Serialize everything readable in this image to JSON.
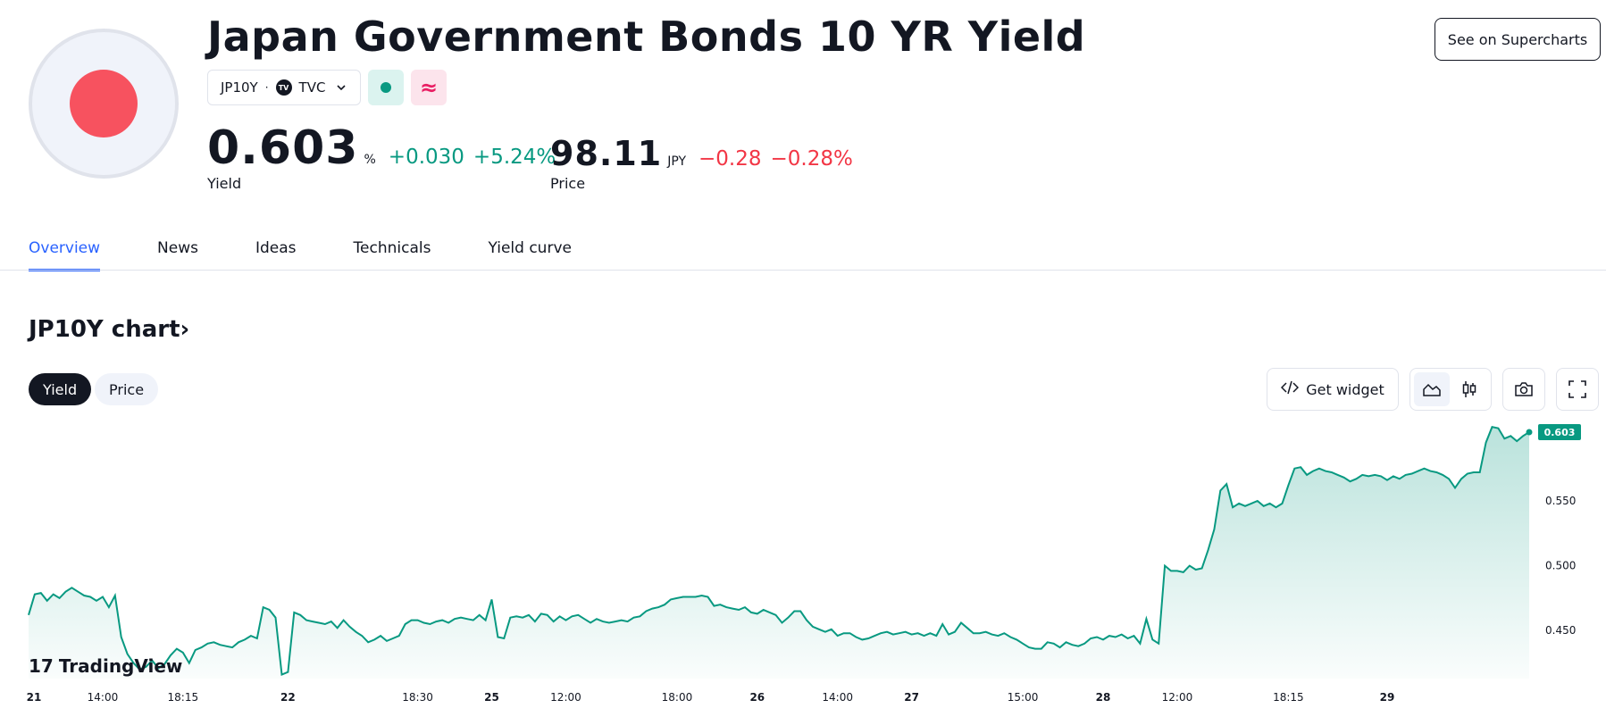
{
  "header": {
    "title": "Japan Government Bonds 10 YR Yield",
    "symbol": "JP10Y",
    "separator": "·",
    "exchange": "TVC",
    "logo_mark": "TV",
    "market_status_icon": "market-open-dot",
    "delayed_icon": "≈",
    "supercharts_label": "See on Supercharts"
  },
  "quote": {
    "yield_value": "0.603",
    "yield_unit": "%",
    "yield_change": "+0.030",
    "yield_change_pct": "+5.24%",
    "yield_label": "Yield",
    "price_value": "98.11",
    "price_unit": "JPY",
    "price_change": "−0.28",
    "price_change_pct": "−0.28%",
    "price_label": "Price"
  },
  "tabs": [
    {
      "label": "Overview",
      "active": true
    },
    {
      "label": "News"
    },
    {
      "label": "Ideas"
    },
    {
      "label": "Technicals"
    },
    {
      "label": "Yield curve"
    }
  ],
  "chart_section": {
    "title": "JP10Y chart",
    "title_chevron": "›",
    "toggle_yield": "Yield",
    "toggle_price": "Price",
    "widget_label": "Get widget",
    "watermark": "TradingView",
    "watermark_mark": "17"
  },
  "colors": {
    "accent": "#2962ff",
    "up": "#089981",
    "down": "#f23645",
    "flag_red": "#f7525f"
  },
  "chart_data": {
    "type": "area",
    "series": [
      {
        "values": [
          0.462,
          0.478,
          0.479,
          0.473,
          0.478,
          0.475,
          0.48,
          0.483,
          0.48,
          0.477,
          0.476,
          0.473,
          0.476,
          0.468,
          0.477,
          0.445,
          0.432,
          0.425,
          0.42,
          0.422,
          0.427,
          0.421,
          0.424,
          0.431,
          0.436,
          0.433,
          0.425,
          0.435,
          0.437,
          0.44,
          0.441,
          0.439,
          0.438,
          0.437,
          0.441,
          0.443,
          0.446,
          0.444,
          0.468,
          0.466,
          0.46,
          0.416,
          0.418,
          0.464,
          0.462,
          0.458,
          0.457,
          0.456,
          0.455,
          0.457,
          0.452,
          0.458,
          0.453,
          0.449,
          0.446,
          0.441,
          0.443,
          0.446,
          0.442,
          0.444,
          0.446,
          0.455,
          0.458,
          0.458,
          0.456,
          0.455,
          0.457,
          0.458,
          0.456,
          0.459,
          0.46,
          0.459,
          0.458,
          0.462,
          0.458,
          0.474,
          0.445,
          0.444,
          0.46,
          0.461,
          0.46,
          0.462,
          0.457,
          0.463,
          0.462,
          0.457,
          0.461,
          0.458,
          0.461,
          0.462,
          0.459,
          0.456,
          0.459,
          0.457,
          0.456,
          0.457,
          0.458,
          0.457,
          0.46,
          0.461,
          0.465,
          0.467,
          0.468,
          0.47,
          0.474,
          0.475,
          0.476,
          0.476,
          0.476,
          0.477,
          0.476,
          0.469,
          0.47,
          0.468,
          0.467,
          0.466,
          0.468,
          0.464,
          0.463,
          0.466,
          0.464,
          0.462,
          0.456,
          0.46,
          0.465,
          0.465,
          0.458,
          0.453,
          0.451,
          0.449,
          0.451,
          0.446,
          0.448,
          0.448,
          0.445,
          0.443,
          0.444,
          0.446,
          0.448,
          0.449,
          0.447,
          0.448,
          0.449,
          0.447,
          0.448,
          0.446,
          0.448,
          0.446,
          0.455,
          0.447,
          0.449,
          0.456,
          0.452,
          0.448,
          0.448,
          0.449,
          0.447,
          0.446,
          0.448,
          0.445,
          0.443,
          0.44,
          0.437,
          0.436,
          0.436,
          0.441,
          0.44,
          0.437,
          0.441,
          0.439,
          0.438,
          0.44,
          0.444,
          0.445,
          0.443,
          0.446,
          0.445,
          0.447,
          0.444,
          0.446,
          0.44,
          0.459,
          0.443,
          0.44,
          0.5,
          0.496,
          0.496,
          0.495,
          0.5,
          0.497,
          0.498,
          0.512,
          0.528,
          0.558,
          0.563,
          0.545,
          0.548,
          0.546,
          0.548,
          0.55,
          0.546,
          0.548,
          0.545,
          0.548,
          0.562,
          0.575,
          0.576,
          0.57,
          0.573,
          0.575,
          0.573,
          0.572,
          0.57,
          0.568,
          0.565,
          0.567,
          0.57,
          0.569,
          0.57,
          0.569,
          0.566,
          0.569,
          0.567,
          0.57,
          0.571,
          0.573,
          0.575,
          0.573,
          0.572,
          0.57,
          0.567,
          0.56,
          0.567,
          0.571,
          0.572,
          0.572,
          0.595,
          0.607,
          0.606,
          0.598,
          0.6,
          0.596,
          0.6,
          0.603
        ]
      }
    ],
    "last_value_label": "0.603",
    "y_ticks": [
      "0.550",
      "0.500",
      "0.450"
    ],
    "y_tick_values": [
      0.55,
      0.5,
      0.45
    ],
    "ylim": [
      0.413,
      0.614
    ],
    "x_ticks": [
      {
        "label": "21",
        "index": 0,
        "bold": true
      },
      {
        "label": "14:00",
        "index": 12
      },
      {
        "label": "18:15",
        "index": 25
      },
      {
        "label": "22",
        "index": 42,
        "bold": true
      },
      {
        "label": "18:30",
        "index": 63
      },
      {
        "label": "25",
        "index": 75,
        "bold": true
      },
      {
        "label": "12:00",
        "index": 87
      },
      {
        "label": "18:00",
        "index": 105
      },
      {
        "label": "26",
        "index": 118,
        "bold": true
      },
      {
        "label": "14:00",
        "index": 131
      },
      {
        "label": "27",
        "index": 143,
        "bold": true
      },
      {
        "label": "15:00",
        "index": 161
      },
      {
        "label": "28",
        "index": 174,
        "bold": true
      },
      {
        "label": "12:00",
        "index": 186
      },
      {
        "label": "18:15",
        "index": 204
      },
      {
        "label": "29",
        "index": 220,
        "bold": true
      }
    ],
    "grid": false
  }
}
